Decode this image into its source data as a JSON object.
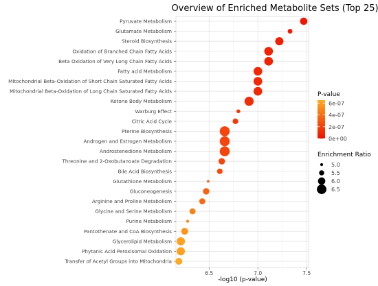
{
  "chart_data": {
    "type": "scatter",
    "title": "Overview of Enriched Metabolite Sets (Top 25)",
    "xlabel": "-log10 (p-value)",
    "ylabel": "",
    "xlim": [
      6.16,
      7.52
    ],
    "xticks": [
      "6.5",
      "7.0",
      "7.5"
    ],
    "xtick_values": [
      6.5,
      7.0,
      7.5
    ],
    "grid": true,
    "legend_position": "right",
    "categories": [
      "Pyruvate Metabolism",
      "Glutamate Metabolism",
      "Steroid Biosynthesis",
      "Oxidation of Branched Chain Fatty Acids",
      "Beta Oxidation of Very Long Chain Fatty Acids",
      "Fatty acid Metabolism",
      "Mitochondrial Beta-Oxidation of Short Chain Saturated Fatty Acids",
      "Mitochondrial Beta-Oxidation of Long Chain Saturated Fatty Acids",
      "Ketone Body Metabolism",
      "Warburg Effect",
      "Citric Acid Cycle",
      "Pterine Biosynthesis",
      "Androgen and Estrogen Metabolism",
      "Androstenedione Metabolism",
      "Threonine and 2-Oxobutanoate Degradation",
      "Bile Acid Biosynthesis",
      "Glutathione Metabolism",
      "Gluconeogenesis",
      "Arginine and Proline Metabolism",
      "Glycine and Serine Metabolism",
      "Purine Metabolism",
      "Pantothenate and CoA Biosynthesis",
      "Glycerolipid Metabolism",
      "Phytanic Acid Peroxisomal Oxidation",
      "Transfer of Acetyl Groups into Mitochondria"
    ],
    "x": [
      7.47,
      7.33,
      7.22,
      7.11,
      7.11,
      7.0,
      7.0,
      7.0,
      6.91,
      6.8,
      6.77,
      6.66,
      6.66,
      6.66,
      6.63,
      6.61,
      6.49,
      6.47,
      6.43,
      6.33,
      6.28,
      6.25,
      6.21,
      6.21,
      6.19
    ],
    "p_value": [
      3e-08,
      4.5e-08,
      6e-08,
      7.5e-08,
      7.5e-08,
      1e-07,
      1e-07,
      1e-07,
      1.2e-07,
      1.6e-07,
      1.7e-07,
      2.2e-07,
      2.2e-07,
      2.2e-07,
      2.3e-07,
      2.5e-07,
      3.2e-07,
      3.4e-07,
      3.7e-07,
      4.7e-07,
      5.2e-07,
      5.6e-07,
      6.1e-07,
      6.1e-07,
      6.4e-07
    ],
    "enrichment_ratio": [
      6.0,
      5.4,
      6.2,
      6.3,
      6.3,
      6.3,
      6.3,
      6.3,
      6.4,
      5.2,
      5.6,
      6.6,
      6.6,
      6.6,
      5.8,
      5.6,
      4.9,
      5.8,
      5.7,
      5.7,
      5.0,
      5.9,
      6.2,
      6.2,
      5.9
    ],
    "color_legend": {
      "title": "P-value",
      "labels": [
        "6e-07",
        "4e-07",
        "2e-07",
        "0e+00"
      ],
      "values": [
        6e-07,
        4e-07,
        2e-07,
        0
      ],
      "range": [
        0,
        6.5e-07
      ],
      "low_color": "#ee1100",
      "high_color": "#ffaa22"
    },
    "size_legend": {
      "title": "Enrichment Ratio",
      "labels": [
        "5.0",
        "5.5",
        "6.0",
        "6.5"
      ],
      "values": [
        5.0,
        5.5,
        6.0,
        6.5
      ]
    }
  }
}
